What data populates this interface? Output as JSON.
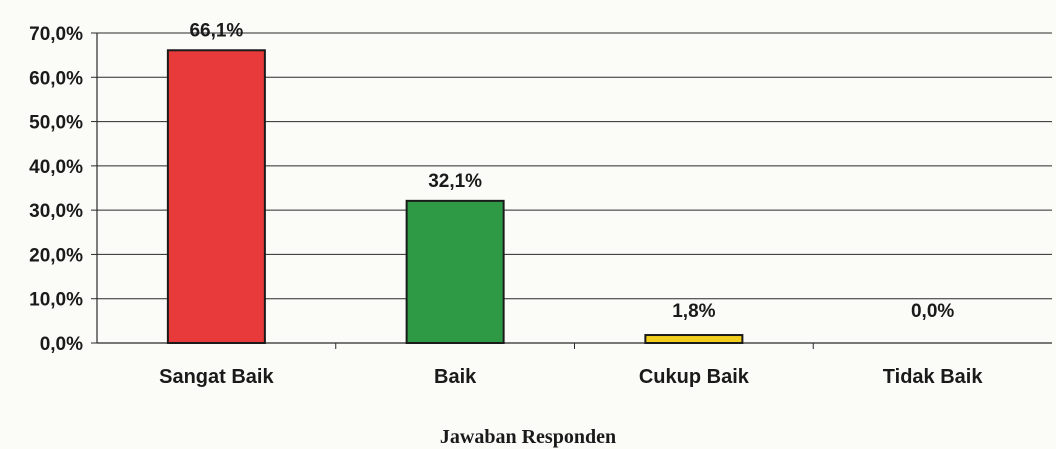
{
  "chart_data": {
    "type": "bar",
    "categories": [
      "Sangat Baik",
      "Baik",
      "Cukup Baik",
      "Tidak Baik"
    ],
    "values": [
      66.1,
      32.1,
      1.8,
      0.0
    ],
    "data_labels": [
      "66,1%",
      "32,1%",
      "1,8%",
      "0,0%"
    ],
    "title": "",
    "xlabel": "Jawaban Responden",
    "ylabel": "",
    "ylim": [
      0,
      70
    ],
    "ytick_values": [
      0,
      10,
      20,
      30,
      40,
      50,
      60,
      70
    ],
    "ytick_labels": [
      "0,0%",
      "10,0%",
      "20,0%",
      "30,0%",
      "40,0%",
      "50,0%",
      "60,0%",
      "70,0%"
    ],
    "bar_colors": [
      "#e83a3a",
      "#2e9a46",
      "#f2cf1e",
      "#b0b0b0"
    ],
    "grid": true,
    "legend": "none"
  }
}
